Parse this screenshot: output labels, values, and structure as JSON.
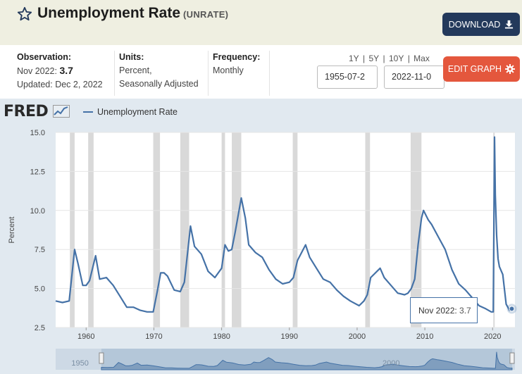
{
  "header": {
    "title": "Unemployment Rate",
    "series_id": "(UNRATE)",
    "download_label": "DOWNLOAD"
  },
  "info": {
    "observation_label": "Observation:",
    "observation_date": "Nov 2022:",
    "observation_value": "3.7",
    "updated": "Updated: Dec 2, 2022",
    "units_label": "Units:",
    "units_line1": "Percent,",
    "units_line2": "Seasonally Adjusted",
    "frequency_label": "Frequency:",
    "frequency_value": "Monthly",
    "range_1y": "1Y",
    "range_5y": "5Y",
    "range_10y": "10Y",
    "range_max": "Max",
    "separator": "|",
    "start_date": "1955-07-2",
    "end_date": "2022-11-0",
    "edit_graph_label": "EDIT GRAPH"
  },
  "legend": {
    "logo": "FRED",
    "series": "Unemployment Rate"
  },
  "tooltip": {
    "date": "Nov 2022:",
    "value": "3.7"
  },
  "navigator_labels": [
    "1950",
    "2000"
  ],
  "colors": {
    "line": "#4572a7",
    "recession": "#d9d9d9",
    "download_bg": "#23395b",
    "edit_bg": "#e4573d"
  },
  "chart_data": {
    "type": "line",
    "title": "",
    "xlabel": "",
    "ylabel": "Percent",
    "xlim": [
      1955.5,
      2023.3
    ],
    "ylim": [
      2.5,
      15.0
    ],
    "yticks": [
      "2.5",
      "5.0",
      "7.5",
      "10.0",
      "12.5",
      "15.0"
    ],
    "xticks": [
      "1960",
      "1970",
      "1980",
      "1990",
      "2000",
      "2010",
      "2020"
    ],
    "recessions": [
      [
        1957.6,
        1958.3
      ],
      [
        1960.3,
        1961.1
      ],
      [
        1969.9,
        1970.9
      ],
      [
        1973.9,
        1975.2
      ],
      [
        1980.0,
        1980.5
      ],
      [
        1981.5,
        1982.9
      ],
      [
        1990.5,
        1991.2
      ],
      [
        2001.2,
        2001.9
      ],
      [
        2007.9,
        2009.5
      ],
      [
        2020.1,
        2020.3
      ]
    ],
    "series": [
      {
        "name": "Unemployment Rate",
        "x": [
          1955.5,
          1956.5,
          1957.5,
          1958.3,
          1958.8,
          1959.5,
          1960.0,
          1960.5,
          1961.4,
          1962.0,
          1963.0,
          1964.0,
          1965.0,
          1966.0,
          1967.0,
          1968.0,
          1969.0,
          1969.9,
          1970.5,
          1971.0,
          1971.5,
          1972.0,
          1973.0,
          1973.9,
          1974.5,
          1975.4,
          1976.0,
          1977.0,
          1978.0,
          1979.0,
          1980.0,
          1980.5,
          1981.0,
          1981.5,
          1982.0,
          1982.9,
          1983.5,
          1984.0,
          1985.0,
          1986.0,
          1987.0,
          1988.0,
          1989.0,
          1990.0,
          1990.6,
          1991.2,
          1992.4,
          1993.0,
          1994.0,
          1995.0,
          1996.0,
          1997.0,
          1998.0,
          1999.0,
          2000.3,
          2001.0,
          2001.5,
          2002.0,
          2003.4,
          2004.0,
          2005.0,
          2006.0,
          2007.0,
          2007.5,
          2008.0,
          2008.5,
          2009.0,
          2009.5,
          2009.8,
          2010.5,
          2011.0,
          2012.0,
          2013.0,
          2014.0,
          2015.0,
          2016.0,
          2017.0,
          2018.0,
          2019.0,
          2019.8,
          2020.1,
          2020.28,
          2020.4,
          2020.6,
          2020.8,
          2021.0,
          2021.5,
          2022.0,
          2022.5,
          2022.83
        ],
        "values": [
          4.2,
          4.1,
          4.2,
          7.5,
          6.6,
          5.2,
          5.2,
          5.5,
          7.1,
          5.6,
          5.7,
          5.2,
          4.5,
          3.8,
          3.8,
          3.6,
          3.5,
          3.5,
          4.8,
          6.0,
          6.0,
          5.8,
          4.9,
          4.8,
          5.4,
          9.0,
          7.7,
          7.2,
          6.1,
          5.7,
          6.3,
          7.8,
          7.4,
          7.5,
          8.6,
          10.8,
          9.5,
          7.8,
          7.3,
          7.0,
          6.2,
          5.6,
          5.3,
          5.4,
          5.7,
          6.8,
          7.8,
          7.0,
          6.3,
          5.6,
          5.4,
          4.9,
          4.5,
          4.2,
          3.9,
          4.2,
          4.6,
          5.7,
          6.3,
          5.7,
          5.2,
          4.7,
          4.6,
          4.7,
          5.0,
          5.6,
          7.8,
          9.5,
          10.0,
          9.4,
          9.1,
          8.3,
          7.5,
          6.2,
          5.3,
          4.9,
          4.4,
          3.9,
          3.7,
          3.5,
          3.5,
          14.7,
          11.0,
          8.4,
          6.9,
          6.4,
          5.9,
          4.0,
          3.6,
          3.7
        ]
      }
    ]
  }
}
